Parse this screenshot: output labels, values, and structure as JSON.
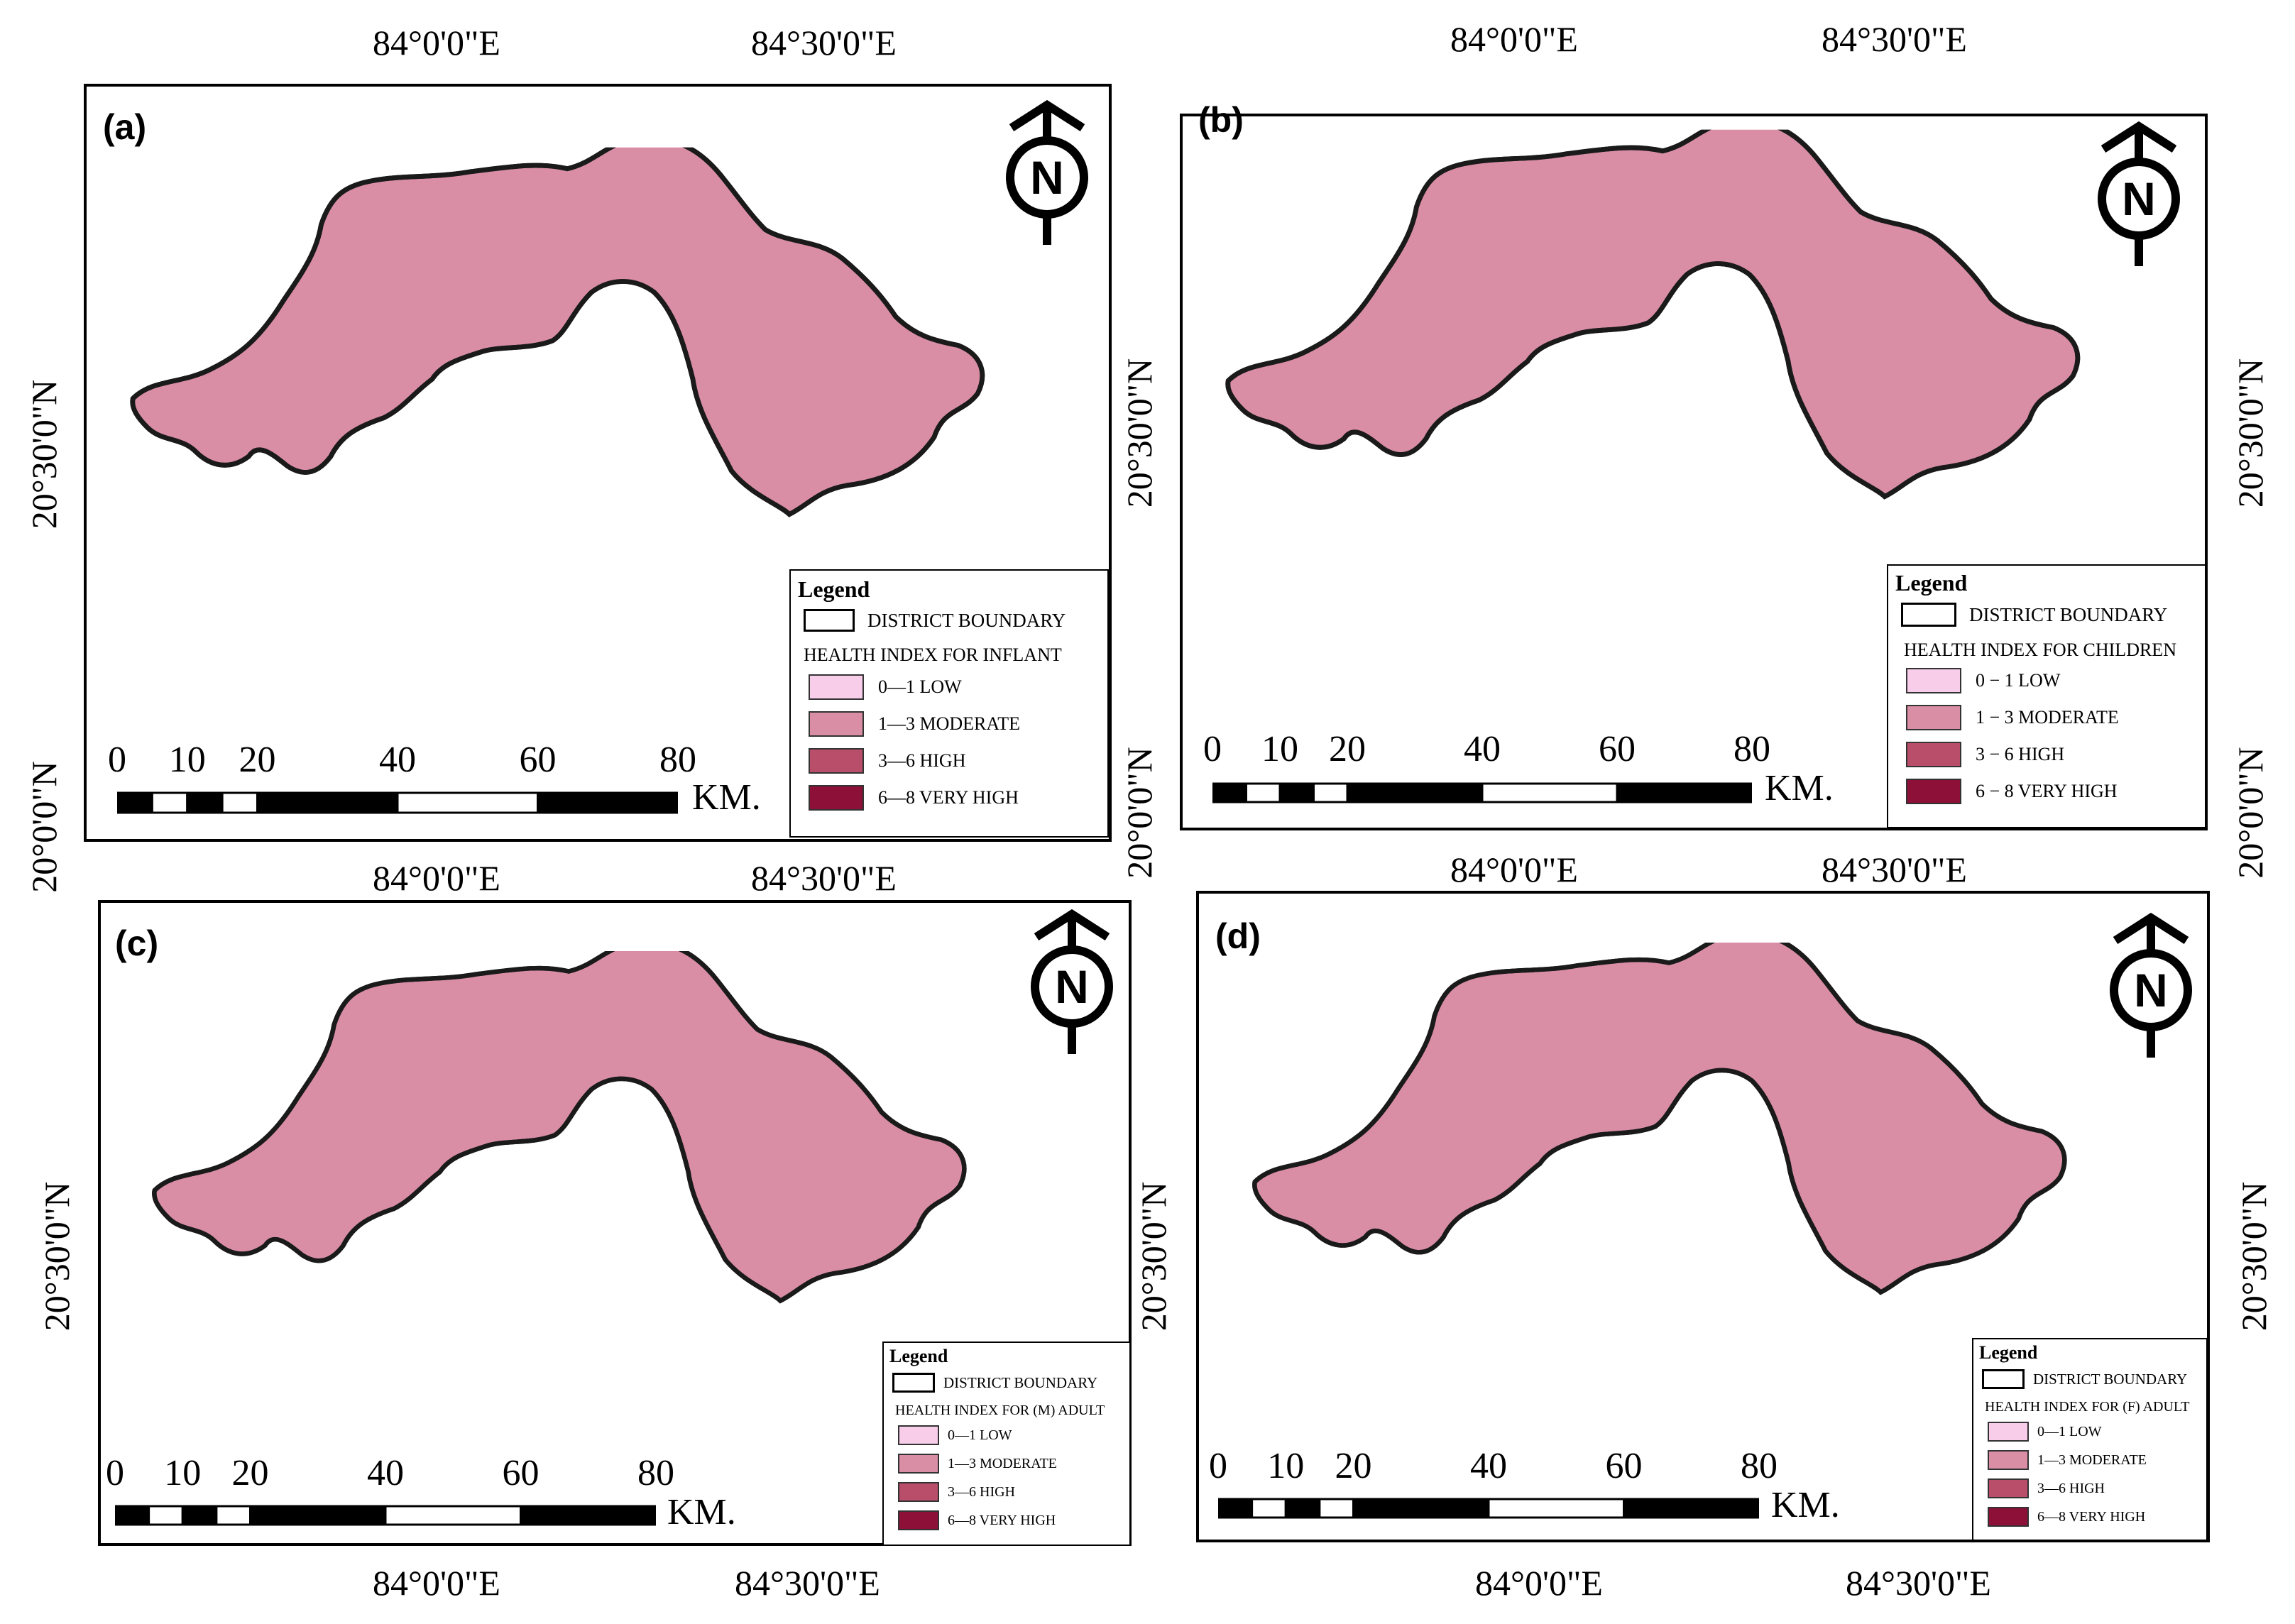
{
  "coords": {
    "lon_left": "84°0'0\"E",
    "lon_right": "84°30'0\"E",
    "lat_mid": "20°30'0\"N",
    "lat_bottom": "20°0'0\"N"
  },
  "scale": {
    "ticks": [
      "0",
      "10",
      "20",
      "40",
      "60",
      "80"
    ],
    "unit": "KM."
  },
  "north_arrow": {
    "letter": "N",
    "icon": "north-arrow-icon"
  },
  "colors": {
    "low": "#f7cdea",
    "moderate": "#d98ea6",
    "high": "#b84e6a",
    "very_high": "#8c1038",
    "boundary": "#1a1a1a"
  },
  "legend_common": {
    "title": "Legend",
    "boundary_label": "DISTRICT BOUNDARY"
  },
  "panels": [
    {
      "label": "(a)",
      "index_title": "HEALTH INDEX FOR INFLANT",
      "classes": [
        "0—1 LOW",
        "1—3 MODERATE",
        "3—6 HIGH",
        "6—8 VERY HIGH"
      ]
    },
    {
      "label": "(b)",
      "index_title": "HEALTH INDEX FOR CHILDREN",
      "classes": [
        "0 − 1 LOW",
        "1 − 3 MODERATE",
        "3 − 6 HIGH",
        "6 − 8 VERY HIGH"
      ]
    },
    {
      "label": "(c)",
      "index_title": "HEALTH INDEX FOR (M) ADULT",
      "classes": [
        "0—1 LOW",
        "1—3 MODERATE",
        "3—6 HIGH",
        "6—8 VERY HIGH"
      ]
    },
    {
      "label": "(d)",
      "index_title": "HEALTH INDEX FOR (F) ADULT",
      "classes": [
        "0—1 LOW",
        "1—3 MODERATE",
        "3—6 HIGH",
        "6—8 VERY HIGH"
      ]
    }
  ]
}
